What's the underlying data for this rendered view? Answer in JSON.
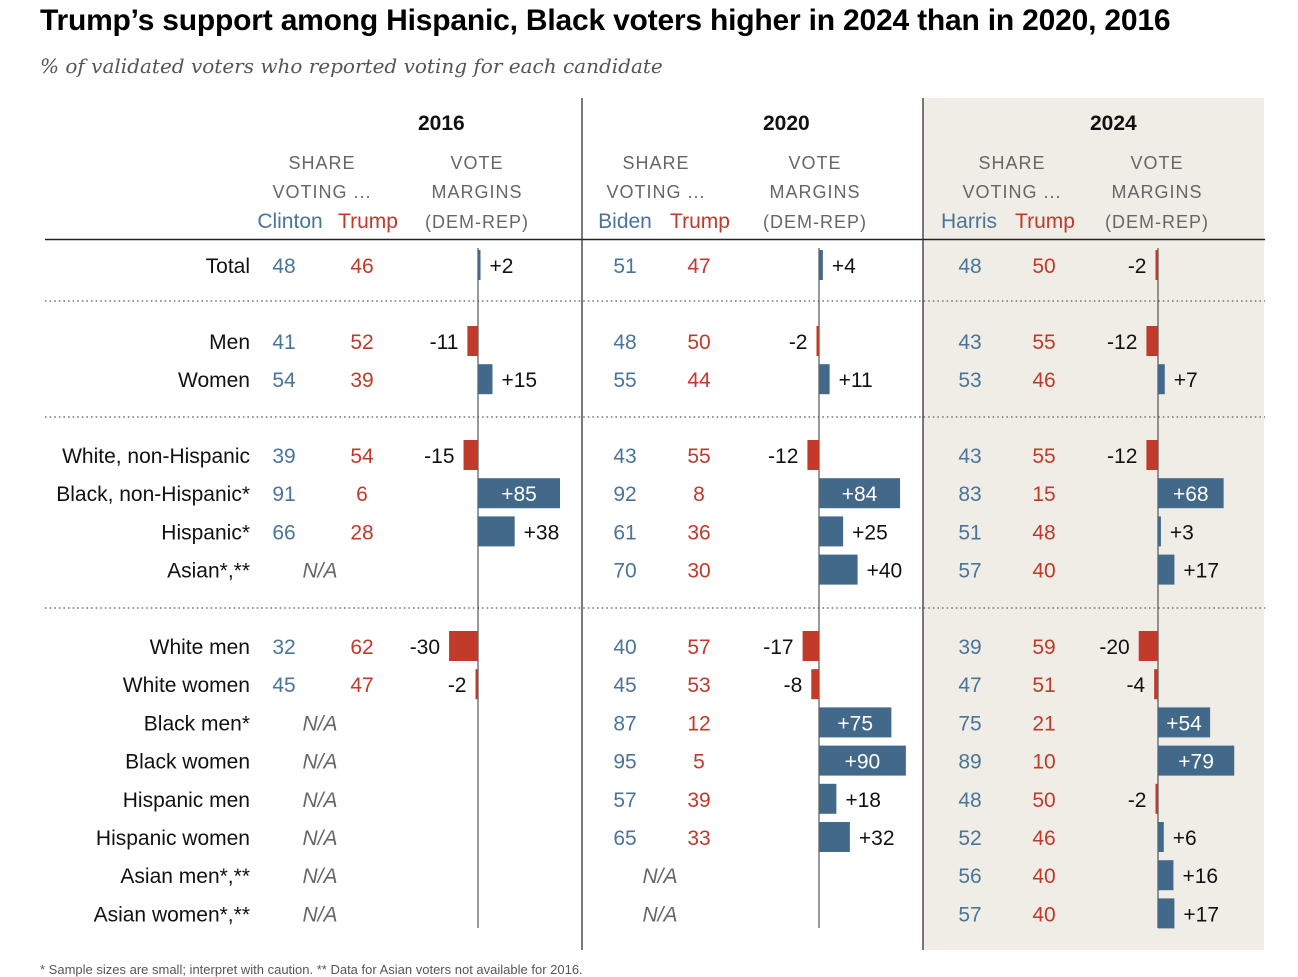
{
  "title": "Trump’s support among Hispanic, Black voters higher in 2024 than in 2020, 2016",
  "subtitle": "% of validated voters who reported voting for each candidate",
  "colors": {
    "dem": "#4a7499",
    "rep": "#c0392b",
    "dem_bar": "#42688a",
    "rep_bar": "#c23b2a",
    "highlight_bg": "#efede5",
    "text": "#111111",
    "muted": "#666666"
  },
  "column_headers": {
    "share_line1": "SHARE",
    "share_line2": "VOTING ...",
    "margin_line1": "VOTE",
    "margin_line2": "MARGINS",
    "margin_line3": "(DEM-REP)"
  },
  "na_label": "N/A",
  "chart_data": {
    "type": "table",
    "panels": [
      {
        "year": "2016",
        "dem": "Clinton",
        "rep": "Trump"
      },
      {
        "year": "2020",
        "dem": "Biden",
        "rep": "Trump"
      },
      {
        "year": "2024",
        "dem": "Harris",
        "rep": "Trump"
      }
    ],
    "groups": [
      {
        "rows": [
          {
            "label": "Total",
            "values": [
              [
                48,
                46,
                2
              ],
              [
                51,
                47,
                4
              ],
              [
                48,
                50,
                -2
              ]
            ]
          }
        ]
      },
      {
        "rows": [
          {
            "label": "Men",
            "values": [
              [
                41,
                52,
                -11
              ],
              [
                48,
                50,
                -2
              ],
              [
                43,
                55,
                -12
              ]
            ]
          },
          {
            "label": "Women",
            "values": [
              [
                54,
                39,
                15
              ],
              [
                55,
                44,
                11
              ],
              [
                53,
                46,
                7
              ]
            ]
          }
        ]
      },
      {
        "rows": [
          {
            "label": "White, non-Hispanic",
            "values": [
              [
                39,
                54,
                -15
              ],
              [
                43,
                55,
                -12
              ],
              [
                43,
                55,
                -12
              ]
            ]
          },
          {
            "label": "Black, non-Hispanic*",
            "values": [
              [
                91,
                6,
                85
              ],
              [
                92,
                8,
                84
              ],
              [
                83,
                15,
                68
              ]
            ]
          },
          {
            "label": "Hispanic*",
            "values": [
              [
                66,
                28,
                38
              ],
              [
                61,
                36,
                25
              ],
              [
                51,
                48,
                3
              ]
            ]
          },
          {
            "label": "Asian*,**",
            "values": [
              null,
              [
                70,
                30,
                40
              ],
              [
                57,
                40,
                17
              ]
            ]
          }
        ]
      },
      {
        "rows": [
          {
            "label": "White men",
            "values": [
              [
                32,
                62,
                -30
              ],
              [
                40,
                57,
                -17
              ],
              [
                39,
                59,
                -20
              ]
            ]
          },
          {
            "label": "White women",
            "values": [
              [
                45,
                47,
                -2
              ],
              [
                45,
                53,
                -8
              ],
              [
                47,
                51,
                -4
              ]
            ]
          },
          {
            "label": "Black men*",
            "values": [
              null,
              [
                87,
                12,
                75
              ],
              [
                75,
                21,
                54
              ]
            ]
          },
          {
            "label": "Black women",
            "values": [
              null,
              [
                95,
                5,
                90
              ],
              [
                89,
                10,
                79
              ]
            ]
          },
          {
            "label": "Hispanic men",
            "values": [
              null,
              [
                57,
                39,
                18
              ],
              [
                48,
                50,
                -2
              ]
            ]
          },
          {
            "label": "Hispanic women",
            "values": [
              null,
              [
                65,
                33,
                32
              ],
              [
                52,
                46,
                6
              ]
            ]
          },
          {
            "label": "Asian men*,**",
            "values": [
              null,
              null,
              [
                56,
                40,
                16
              ]
            ]
          },
          {
            "label": "Asian women*,**",
            "values": [
              null,
              null,
              [
                57,
                40,
                17
              ]
            ]
          }
        ]
      }
    ]
  },
  "footnote": "* Sample sizes are small; interpret with caution. ** Data for Asian voters not available for 2016."
}
